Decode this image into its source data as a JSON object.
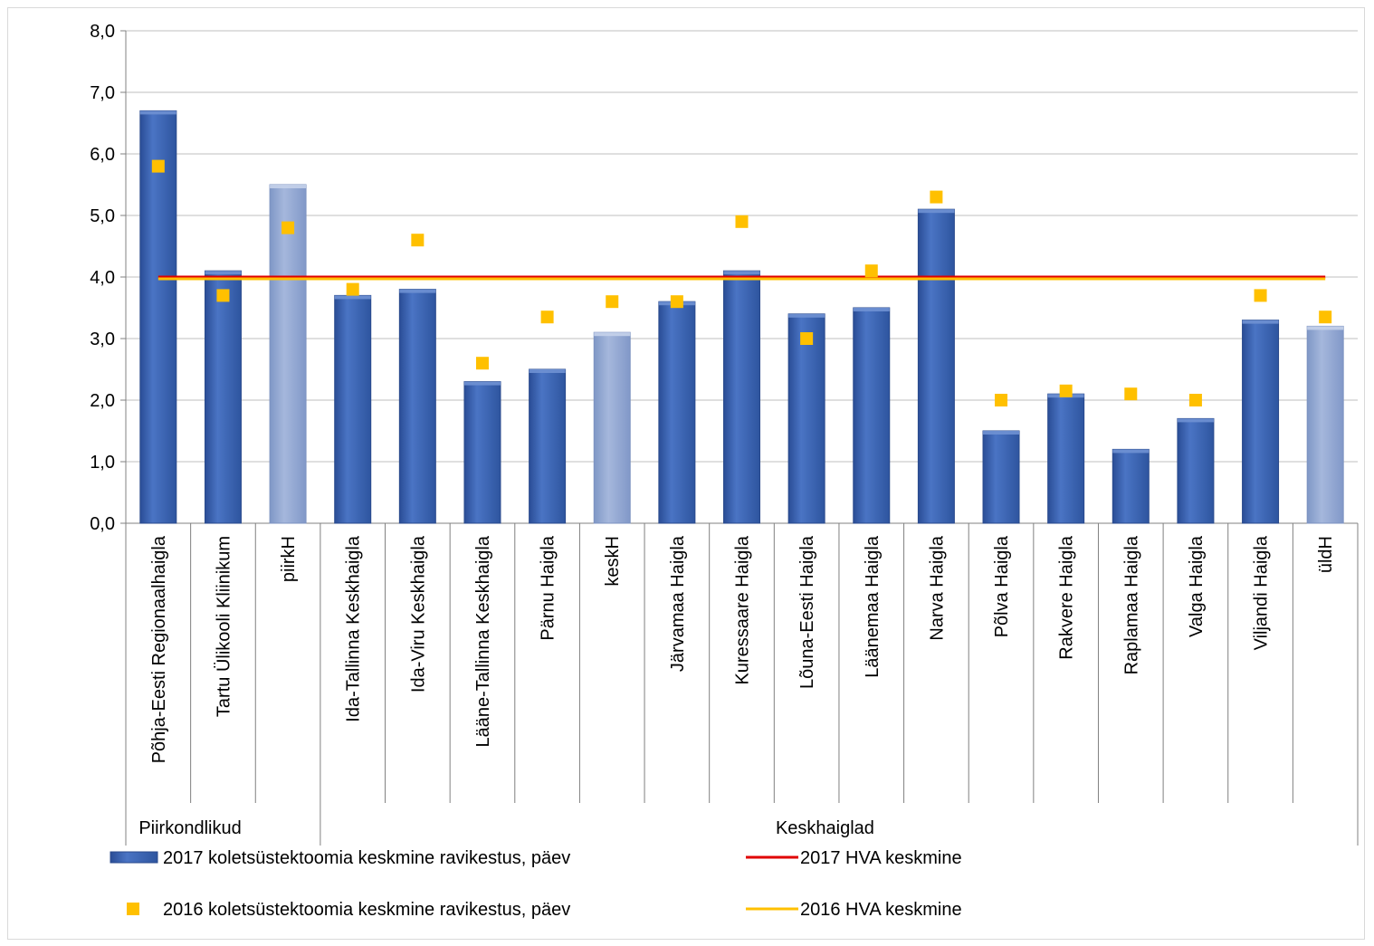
{
  "chart_data": {
    "type": "bar",
    "categories": [
      "Põhja-Eesti Regionaalhaigla",
      "Tartu Ülikooli Kliinikum",
      "piirkH",
      "Ida-Tallinna Keskhaigla",
      "Ida-Viru Keskhaigla",
      "Lääne-Tallinna Keskhaigla",
      "Pärnu Haigla",
      "keskH",
      "Järvamaa Haigla",
      "Kuressaare Haigla",
      "Lõuna-Eesti Haigla",
      "Läänemaa Haigla",
      "Narva Haigla",
      "Põlva Haigla",
      "Rakvere Haigla",
      "Raplamaa Haigla",
      "Valga Haigla",
      "Viljandi Haigla",
      "üldH"
    ],
    "summary_categories": [
      "piirkH",
      "keskH",
      "üldH"
    ],
    "groups": [
      {
        "label": "Piirkondlikud",
        "start": 0,
        "end": 2
      },
      {
        "label": "Keskhaiglad",
        "start": 3,
        "end": 18
      }
    ],
    "series": [
      {
        "name": "2017 koletsüstektoomia keskmine ravikestus, päev",
        "type": "bar",
        "values": [
          6.7,
          4.1,
          5.5,
          3.7,
          3.8,
          2.3,
          2.5,
          3.1,
          3.6,
          4.1,
          3.4,
          3.5,
          5.1,
          1.5,
          2.1,
          1.2,
          1.7,
          3.3,
          3.2
        ]
      },
      {
        "name": "2016 koletsüstektoomia keskmine ravikestus, päev",
        "type": "scatter",
        "values": [
          5.8,
          3.7,
          4.8,
          3.8,
          4.6,
          2.6,
          3.35,
          3.6,
          3.6,
          4.9,
          3.0,
          4.1,
          5.3,
          2.0,
          2.15,
          2.1,
          2.0,
          3.7,
          3.35
        ]
      },
      {
        "name": "2017 HVA keskmine",
        "type": "line",
        "value": 4.0
      },
      {
        "name": "2016 HVA keskmine",
        "type": "line",
        "value": 3.97
      }
    ],
    "ylim": [
      0,
      8
    ],
    "yticks": [
      "0,0",
      "1,0",
      "2,0",
      "3,0",
      "4,0",
      "5,0",
      "6,0",
      "7,0",
      "8,0"
    ],
    "grid": true,
    "legend_placement": "bottom",
    "title": "",
    "xlabel": "",
    "ylabel": "",
    "colors": {
      "bar": "#3a63b3",
      "bar_summary": "#8ea5d0",
      "marker_2016": "#ffc000",
      "line_2017": "#e00000",
      "line_2016": "#ffc000",
      "grid": "#bfbfbf"
    }
  }
}
